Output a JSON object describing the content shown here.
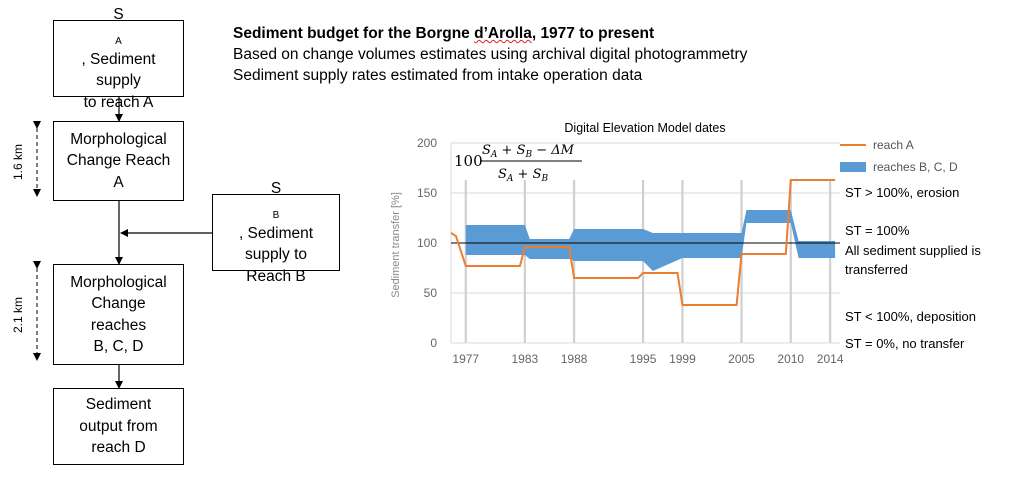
{
  "heading": {
    "title_prefix": "Sediment budget for the Borgne ",
    "title_place": "d’Arolla",
    "title_suffix": ", 1977 to present",
    "line2": "Based on change volumes estimates using archival digital photogrammetry",
    "line3": "Sediment supply rates estimated from intake operation data"
  },
  "flow": {
    "box1": {
      "sym": "S",
      "sub": "A",
      "line1": ", Sediment",
      "line2": "supply",
      "line3": "to reach A"
    },
    "box2": {
      "line1": "Morphological",
      "line2": "Change Reach",
      "line3": "A"
    },
    "box3": {
      "sym": "S",
      "sub": "B",
      "line1": ", Sediment",
      "line2": "supply to",
      "line3": "Reach B"
    },
    "box4": {
      "line1": "Morphological",
      "line2": "Change",
      "line3": "reaches",
      "line4": "B, C, D"
    },
    "box5": {
      "line1": "Sediment",
      "line2": "output from",
      "line3": "reach D"
    },
    "dist1": "1.6 km",
    "dist2": "2.1 km"
  },
  "chart_data": {
    "type": "area",
    "title": "Digital Elevation Model dates",
    "ylabel": "Sediment transfer [%]",
    "ylim": [
      0,
      200
    ],
    "yticks": [
      0,
      50,
      100,
      150,
      200
    ],
    "xlim": [
      1975.5,
      2015
    ],
    "xticks": [
      1977,
      1983,
      1988,
      1995,
      1999,
      2005,
      2010,
      2014
    ],
    "gridlines_x": [
      1977,
      1983,
      1988,
      1995,
      1999,
      2005,
      2010,
      2014
    ],
    "formula": "100 (S_A + S_B - ΔM) / (S_A + S_B)",
    "series": [
      {
        "name": "reach A",
        "color": "#ed7d31",
        "x": [
          1975.5,
          1976,
          1977,
          1982.5,
          1983,
          1987.5,
          1988,
          1994.5,
          1995,
          1998.5,
          1999,
          2004.5,
          2005,
          2009.5,
          2010,
          2014.5
        ],
        "y": [
          110,
          107,
          77,
          77,
          96,
          96,
          65,
          65,
          70,
          70,
          38,
          38,
          89,
          89,
          163,
          163
        ]
      },
      {
        "name": "reaches B, C, D",
        "color": "#5b9bd5",
        "x": [
          1977,
          1983,
          1983.5,
          1987.5,
          1988,
          1995,
          1996,
          1999,
          2005,
          2005.5,
          2010,
          2010.8,
          2014.5
        ],
        "upper": [
          118,
          118,
          104,
          104,
          114,
          114,
          110,
          110,
          110,
          133,
          133,
          102,
          102
        ],
        "lower": [
          88,
          88,
          84,
          84,
          82,
          82,
          72,
          85,
          85,
          120,
          120,
          85,
          85
        ]
      }
    ],
    "reference_line": {
      "y": 100,
      "color": "#000000"
    },
    "annotations": {
      "a1": "ST > 100%, erosion",
      "a2": "ST = 100%",
      "a3": "All sediment supplied is",
      "a4": "transferred",
      "a5": "ST < 100%, deposition",
      "a6": "ST = 0%, no transfer"
    }
  }
}
